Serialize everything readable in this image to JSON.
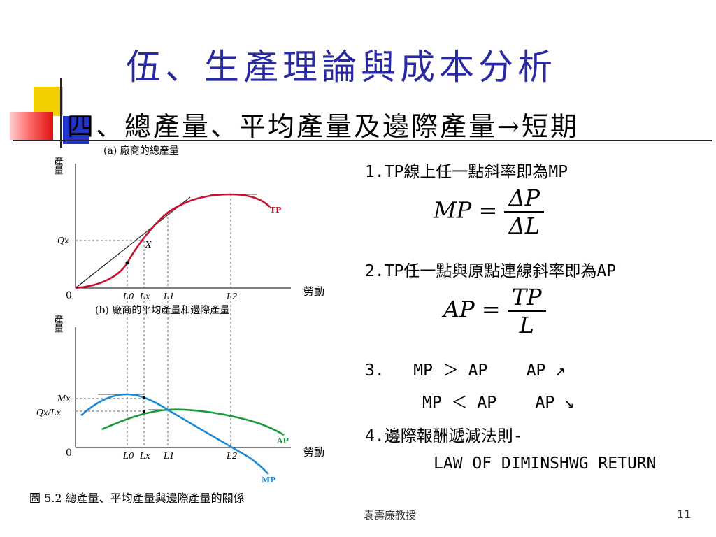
{
  "slide": {
    "title": "伍、生產理論與成本分析",
    "subtitle": "四、總產量、平均產量及邊際產量→短期",
    "footer_author": "袁壽廉教授",
    "page_number": "11"
  },
  "notes": {
    "point1": "1.TP線上任一點斜率即為MP",
    "formula_mp": {
      "lhs": "MP =",
      "num": "ΔP",
      "den": "ΔL"
    },
    "point2": "2.TP任一點與原點連線斜率即為AP",
    "formula_ap": {
      "lhs": "AP =",
      "num": "TP",
      "den": "L"
    },
    "point3_line1": "3.   MP ＞ AP    AP ↗",
    "point3_line2": "MP ＜ AP    AP ↘",
    "point4": "4.邊際報酬遞減法則-",
    "point4_en": "LAW OF DIMINSHWG RETURN"
  },
  "figure": {
    "top_title": "(a) 廠商的總產量",
    "bottom_title": "(b) 廠商的平均產量和邊際產量",
    "y_label": "產量",
    "x_label": "勞動",
    "origin": "0",
    "tp_label": "TP",
    "ap_label": "AP",
    "mp_label": "MP",
    "x_point_label": "X",
    "qx_label": "Qx",
    "mx_label": "Mx",
    "qxlx_label": "Qx/Lx",
    "ticks": [
      "L0",
      "Lx",
      "L1",
      "L2"
    ],
    "caption": "圖 5.2 總產量、平均產量與邊際產量的關係",
    "colors": {
      "tp": "#c8102e",
      "ap": "#1a9a3a",
      "mp": "#1e8ad6"
    }
  }
}
